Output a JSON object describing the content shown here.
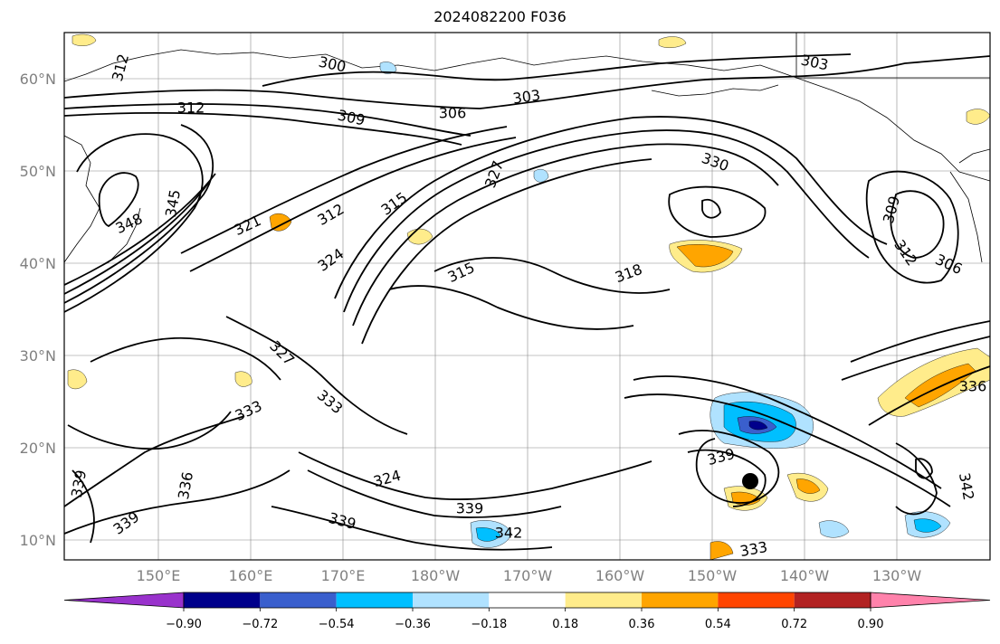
{
  "title": "2024082200 F036",
  "map": {
    "lat_labels": [
      "60°N",
      "50°N",
      "40°N",
      "30°N",
      "20°N",
      "10°N"
    ],
    "lon_labels": [
      "150°E",
      "160°E",
      "170°E",
      "180°W",
      "170°W",
      "160°W",
      "150°W",
      "140°W",
      "130°W"
    ],
    "contour_labels": [
      {
        "id": "c300",
        "text": "300"
      },
      {
        "id": "c303a",
        "text": "303"
      },
      {
        "id": "c303b",
        "text": "303"
      },
      {
        "id": "c306a",
        "text": "306"
      },
      {
        "id": "c306b",
        "text": "306"
      },
      {
        "id": "c309a",
        "text": "309"
      },
      {
        "id": "c309b",
        "text": "309"
      },
      {
        "id": "c312a",
        "text": "312"
      },
      {
        "id": "c312b",
        "text": "312"
      },
      {
        "id": "c312c",
        "text": "312"
      },
      {
        "id": "c312d",
        "text": "312"
      },
      {
        "id": "c315a",
        "text": "315"
      },
      {
        "id": "c315b",
        "text": "315"
      },
      {
        "id": "c318",
        "text": "318"
      },
      {
        "id": "c321",
        "text": "321"
      },
      {
        "id": "c324a",
        "text": "324"
      },
      {
        "id": "c324b",
        "text": "324"
      },
      {
        "id": "c327a",
        "text": "327"
      },
      {
        "id": "c327b",
        "text": "327"
      },
      {
        "id": "c330",
        "text": "330"
      },
      {
        "id": "c333a",
        "text": "333"
      },
      {
        "id": "c333b",
        "text": "333"
      },
      {
        "id": "c333c",
        "text": "333"
      },
      {
        "id": "c336a",
        "text": "336"
      },
      {
        "id": "c336b",
        "text": "336"
      },
      {
        "id": "c339a",
        "text": "339"
      },
      {
        "id": "c339b",
        "text": "339"
      },
      {
        "id": "c339c",
        "text": "339"
      },
      {
        "id": "c339d",
        "text": "339"
      },
      {
        "id": "c339e",
        "text": "339"
      },
      {
        "id": "c342a",
        "text": "342"
      },
      {
        "id": "c342b",
        "text": "342"
      },
      {
        "id": "c345",
        "text": "345"
      },
      {
        "id": "c348",
        "text": "348"
      }
    ],
    "storm_marker": "storm-center"
  },
  "colorbar": {
    "tick_labels": [
      "−0.90",
      "−0.72",
      "−0.54",
      "−0.36",
      "−0.18",
      "0.18",
      "0.36",
      "0.54",
      "0.72",
      "0.90"
    ],
    "colors": [
      "#9932cc",
      "#00008b",
      "#3a5fcd",
      "#00bfff",
      "#b0e2ff",
      "#ffffff",
      "#ffec8b",
      "#ffa500",
      "#ff4500",
      "#b22222",
      "#ff82ab"
    ]
  }
}
